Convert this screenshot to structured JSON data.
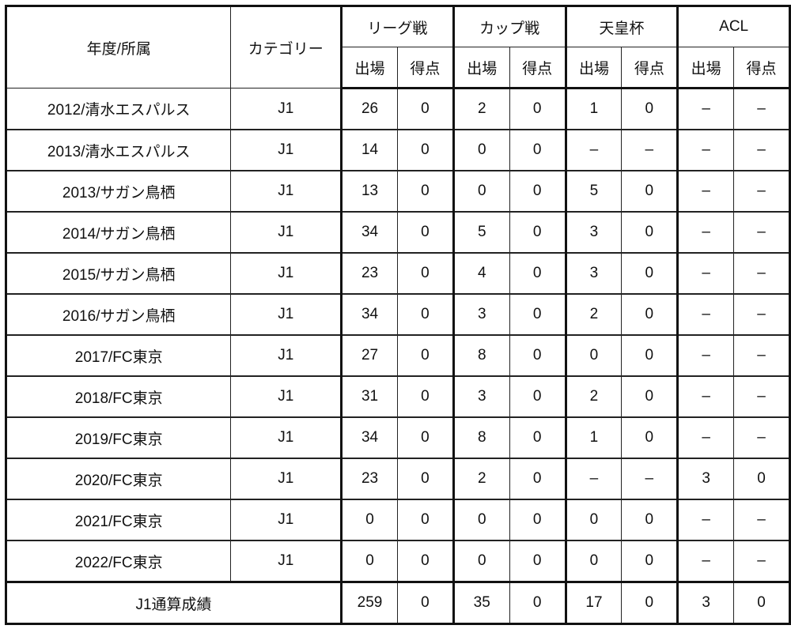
{
  "header": {
    "year_club": "年度/所属",
    "category": "カテゴリー",
    "groups": [
      "リーグ戦",
      "カップ戦",
      "天皇杯",
      "ACL"
    ],
    "sub": [
      "出場",
      "得点"
    ]
  },
  "rows": [
    [
      "2012/清水エスパルス",
      "J1",
      "26",
      "0",
      "2",
      "0",
      "1",
      "0",
      "–",
      "–"
    ],
    [
      "2013/清水エスパルス",
      "J1",
      "14",
      "0",
      "0",
      "0",
      "–",
      "–",
      "–",
      "–"
    ],
    [
      "2013/サガン鳥栖",
      "J1",
      "13",
      "0",
      "0",
      "0",
      "5",
      "0",
      "–",
      "–"
    ],
    [
      "2014/サガン鳥栖",
      "J1",
      "34",
      "0",
      "5",
      "0",
      "3",
      "0",
      "–",
      "–"
    ],
    [
      "2015/サガン鳥栖",
      "J1",
      "23",
      "0",
      "4",
      "0",
      "3",
      "0",
      "–",
      "–"
    ],
    [
      "2016/サガン鳥栖",
      "J1",
      "34",
      "0",
      "3",
      "0",
      "2",
      "0",
      "–",
      "–"
    ],
    [
      "2017/FC東京",
      "J1",
      "27",
      "0",
      "8",
      "0",
      "0",
      "0",
      "–",
      "–"
    ],
    [
      "2018/FC東京",
      "J1",
      "31",
      "0",
      "3",
      "0",
      "2",
      "0",
      "–",
      "–"
    ],
    [
      "2019/FC東京",
      "J1",
      "34",
      "0",
      "8",
      "0",
      "1",
      "0",
      "–",
      "–"
    ],
    [
      "2020/FC東京",
      "J1",
      "23",
      "0",
      "2",
      "0",
      "–",
      "–",
      "3",
      "0"
    ],
    [
      "2021/FC東京",
      "J1",
      "0",
      "0",
      "0",
      "0",
      "0",
      "0",
      "–",
      "–"
    ],
    [
      "2022/FC東京",
      "J1",
      "0",
      "0",
      "0",
      "0",
      "0",
      "0",
      "–",
      "–"
    ]
  ],
  "total": [
    "J1通算成績",
    "259",
    "0",
    "35",
    "0",
    "17",
    "0",
    "3",
    "0"
  ]
}
